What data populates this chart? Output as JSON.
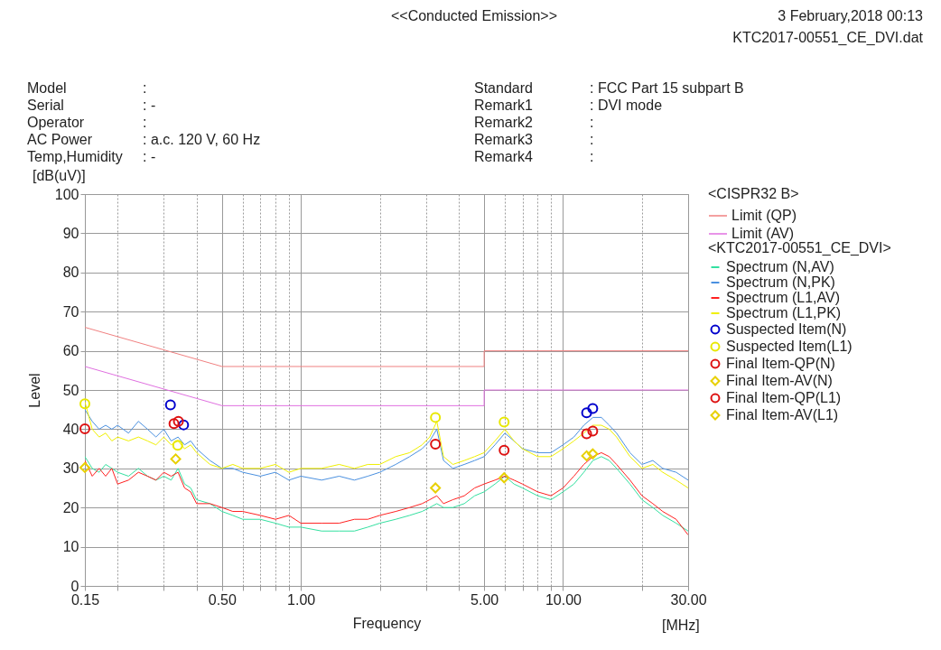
{
  "chart_data": {
    "type": "line",
    "title": "<<Conducted Emission>>",
    "xlabel": "Frequency",
    "ylabel": "Level",
    "legend_title": [
      "<CISPR32 B>",
      "<KTC2017-00551_CE_DVI>"
    ],
    "annotations": [
      "3 February,2018 00:13",
      "KTC2017-00551_CE_DVI.dat",
      "Model :",
      "Serial : -",
      "Operator :",
      "AC Power : a.c. 120 V, 60 Hz",
      "Temp,Humidity : -",
      "Standard : FCC Part 15 subpart B",
      "Remark1 : DVI mode",
      "Remark2 :",
      "Remark3 :",
      "Remark4 :",
      "[dB(uV)]",
      "[MHz]"
    ],
    "log": "x",
    "grid": true,
    "legend": "right",
    "xlim": [
      0.15,
      30
    ],
    "xticks": [
      0.15,
      {
        "value": 0.2,
        "label": null
      },
      {
        "value": 0.3,
        "label": null
      },
      {
        "value": 0.4,
        "label": null
      },
      {
        "value": 0.5,
        "label": "0.50"
      },
      {
        "value": 0.6,
        "label": null
      },
      {
        "value": 0.7,
        "label": null
      },
      {
        "value": 0.8,
        "label": null
      },
      {
        "value": 0.9,
        "label": null
      },
      {
        "value": 1,
        "label": "1.00"
      },
      {
        "value": 2,
        "label": null
      },
      {
        "value": 3,
        "label": null
      },
      {
        "value": 4,
        "label": null
      },
      {
        "value": 5,
        "label": "5.00"
      },
      {
        "value": 6,
        "label": null
      },
      {
        "value": 7,
        "label": null
      },
      {
        "value": 8,
        "label": null
      },
      {
        "value": 9,
        "label": null
      },
      {
        "value": 10,
        "label": "10.00"
      },
      {
        "value": 20,
        "label": null
      },
      {
        "value": 30,
        "label": "30.00"
      }
    ],
    "ylim": [
      0,
      100
    ],
    "yticks": [
      0,
      10,
      20,
      30,
      40,
      50,
      60,
      70,
      80,
      90,
      100
    ],
    "x": [
      0.15,
      0.16,
      0.17,
      0.18,
      0.19,
      0.2,
      0.22,
      0.24,
      0.26,
      0.28,
      0.3,
      0.32,
      0.34,
      0.36,
      0.38,
      0.4,
      0.45,
      0.5,
      0.55,
      0.6,
      0.7,
      0.8,
      0.9,
      1.0,
      1.2,
      1.4,
      1.6,
      1.8,
      2.0,
      2.3,
      2.6,
      2.9,
      3.1,
      3.3,
      3.5,
      3.8,
      4.2,
      4.6,
      5.0,
      5.5,
      6.0,
      6.5,
      7.0,
      8.0,
      9.0,
      10,
      11,
      12,
      13,
      14,
      15,
      16,
      18,
      20,
      22,
      24,
      27,
      30
    ],
    "series": [
      {
        "name": "Limit (QP)",
        "type": "line",
        "color": "#f08080",
        "x": [
          0.15,
          0.5,
          5,
          5,
          30
        ],
        "values": [
          66,
          56,
          56,
          60,
          60
        ]
      },
      {
        "name": "Limit (AV)",
        "type": "line",
        "color": "#e070e0",
        "x": [
          0.15,
          0.5,
          5,
          5,
          30
        ],
        "values": [
          56,
          46,
          46,
          50,
          50
        ]
      },
      {
        "name": "Spectrum (N,AV)",
        "type": "line",
        "color": "#33e0a0",
        "values": [
          33,
          30,
          29,
          31,
          30,
          29,
          28,
          30,
          28,
          27,
          28,
          27,
          30,
          26,
          25,
          22,
          21,
          19,
          18,
          17,
          17,
          16,
          15,
          15,
          14,
          14,
          14,
          15,
          16,
          17,
          18,
          19,
          20,
          21,
          20,
          20,
          21,
          23,
          24,
          26,
          28,
          26,
          25,
          23,
          22,
          24,
          26,
          29,
          32,
          33,
          32,
          30,
          26,
          22,
          20,
          18,
          16,
          14
        ]
      },
      {
        "name": "Spectrum (N,PK)",
        "type": "line",
        "color": "#4a90e0",
        "values": [
          45,
          42,
          40,
          41,
          40,
          41,
          39,
          42,
          40,
          38,
          40,
          37,
          38,
          36,
          37,
          35,
          32,
          30,
          30,
          29,
          28,
          29,
          27,
          28,
          27,
          28,
          27,
          28,
          29,
          31,
          33,
          35,
          37,
          40,
          32,
          30,
          31,
          32,
          33,
          36,
          39,
          37,
          35,
          34,
          34,
          36,
          38,
          41,
          43,
          43,
          41,
          39,
          34,
          31,
          32,
          30,
          29,
          27
        ]
      },
      {
        "name": "Spectrum (L1,AV)",
        "type": "line",
        "color": "#ff2020",
        "values": [
          32,
          28,
          30,
          28,
          30,
          26,
          27,
          29,
          28,
          27,
          29,
          28,
          29,
          25,
          24,
          21,
          21,
          20,
          19,
          19,
          18,
          17,
          18,
          16,
          16,
          16,
          17,
          17,
          18,
          19,
          20,
          21,
          22,
          23,
          21,
          22,
          23,
          25,
          26,
          27,
          28,
          27,
          26,
          24,
          23,
          25,
          28,
          31,
          33,
          34,
          33,
          31,
          27,
          23,
          21,
          19,
          17,
          13
        ]
      },
      {
        "name": "Spectrum (L1,PK)",
        "type": "line",
        "color": "#f0f000",
        "values": [
          47,
          40,
          38,
          39,
          37,
          38,
          37,
          38,
          37,
          36,
          38,
          36,
          37,
          35,
          36,
          34,
          31,
          30,
          31,
          30,
          30,
          31,
          29,
          30,
          30,
          31,
          30,
          31,
          31,
          33,
          34,
          36,
          38,
          42,
          33,
          31,
          32,
          33,
          34,
          37,
          40,
          37,
          35,
          33,
          33,
          35,
          37,
          39,
          41,
          41,
          40,
          38,
          33,
          30,
          31,
          29,
          27,
          25
        ]
      },
      {
        "name": "Suspected Item(N)",
        "type": "scatter",
        "marker": "circle",
        "color": "#0000cc",
        "x": [
          0.318,
          0.357,
          12.3,
          12.98
        ],
        "values": [
          46.2,
          41.1,
          44.2,
          45.3
        ]
      },
      {
        "name": "Suspected Item(L1)",
        "type": "scatter",
        "marker": "circle",
        "color": "#e8e800",
        "x": [
          0.15,
          0.339,
          3.26,
          5.96
        ],
        "values": [
          46.5,
          35.9,
          43.0,
          41.8
        ]
      },
      {
        "name": "Final Item-QP(N)",
        "type": "scatter",
        "marker": "circle",
        "color": "#dd1010",
        "x": [
          0.328,
          0.341,
          12.3,
          12.98
        ],
        "values": [
          41.4,
          42.0,
          38.8,
          39.5
        ]
      },
      {
        "name": "Final Item-AV(N)",
        "type": "scatter",
        "marker": "diamond",
        "color": "#e8d000",
        "x": [
          12.3,
          12.98
        ],
        "values": [
          33.2,
          33.7
        ]
      },
      {
        "name": "Final Item-QP(L1)",
        "type": "scatter",
        "marker": "circle",
        "color": "#dd1010",
        "x": [
          0.15,
          3.26,
          5.96
        ],
        "values": [
          40.1,
          36.2,
          34.6
        ]
      },
      {
        "name": "Final Item-AV(L1)",
        "type": "scatter",
        "marker": "diamond",
        "color": "#e8d000",
        "x": [
          0.15,
          0.333,
          3.26,
          5.96
        ],
        "values": [
          30.2,
          32.4,
          25.0,
          27.6
        ]
      }
    ]
  }
}
